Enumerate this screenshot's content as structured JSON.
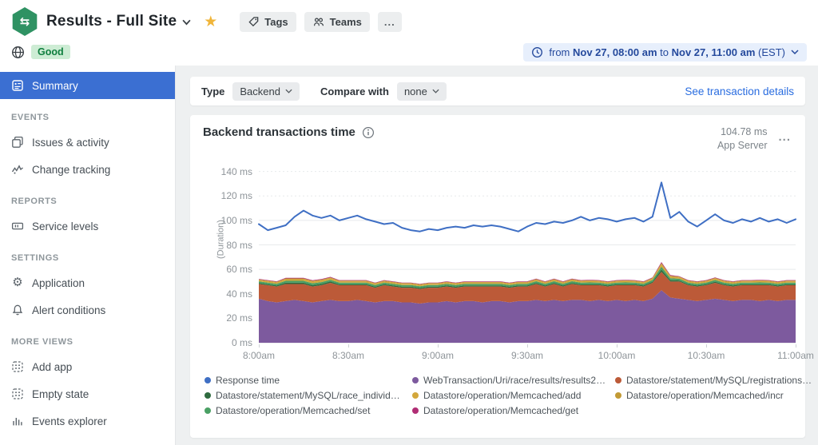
{
  "header": {
    "title": "Results - Full Site",
    "status": "Good",
    "tags_label": "Tags",
    "teams_label": "Teams",
    "more_label": "...",
    "time_range": {
      "prefix": "from",
      "start": "Nov 27, 08:00 am",
      "middle": "to",
      "end": "Nov 27, 11:00 am",
      "suffix": "(EST)"
    }
  },
  "sidebar": {
    "sections": [
      {
        "header": "",
        "items": [
          {
            "label": "Summary"
          }
        ]
      },
      {
        "header": "EVENTS",
        "items": [
          {
            "label": "Issues & activity"
          },
          {
            "label": "Change tracking"
          }
        ]
      },
      {
        "header": "REPORTS",
        "items": [
          {
            "label": "Service levels"
          }
        ]
      },
      {
        "header": "SETTINGS",
        "items": [
          {
            "label": "Application"
          },
          {
            "label": "Alert conditions"
          }
        ]
      },
      {
        "header": "MORE VIEWS",
        "items": [
          {
            "label": "Add app"
          },
          {
            "label": "Empty state"
          },
          {
            "label": "Events explorer"
          }
        ]
      }
    ]
  },
  "toolbar": {
    "type_label": "Type",
    "type_value": "Backend",
    "compare_label": "Compare with",
    "compare_value": "none",
    "details_link": "See transaction details"
  },
  "chart": {
    "title": "Backend transactions time",
    "metric_value": "104.78 ms",
    "metric_label": "App Server",
    "menu": "..."
  },
  "chart_data": {
    "type": "area",
    "title": "Backend transactions time",
    "ylabel": "(Duration)",
    "ylim": [
      0,
      145
    ],
    "yticks": [
      0,
      20,
      40,
      60,
      80,
      100,
      120,
      140
    ],
    "ytick_suffix": " ms",
    "xticks": [
      "8:00am",
      "8:30am",
      "9:00am",
      "9:30am",
      "10:00am",
      "10:30am",
      "11:00am"
    ],
    "x_start": "8:00am",
    "x_end": "11:00am",
    "x_interval_minutes": 3,
    "line_series": {
      "name": "Response time",
      "color": "#3f6fc4",
      "values": [
        97,
        92,
        94,
        96,
        103,
        108,
        104,
        102,
        104,
        100,
        102,
        104,
        101,
        99,
        97,
        98,
        94,
        92,
        91,
        93,
        92,
        94,
        95,
        94,
        96,
        95,
        96,
        95,
        93,
        91,
        95,
        98,
        97,
        99,
        98,
        100,
        103,
        100,
        102,
        101,
        99,
        101,
        102,
        99,
        103,
        131,
        102,
        107,
        99,
        95,
        100,
        105,
        100,
        98,
        101,
        99,
        102,
        99,
        101,
        98,
        101
      ]
    },
    "stack_series": [
      {
        "name": "WebTransaction/Uri/race/results/results2…",
        "color": "#7d5a9e",
        "values": [
          36,
          34,
          33,
          34,
          35,
          34,
          33,
          34,
          35,
          34,
          34,
          35,
          34,
          33,
          34,
          34,
          33,
          33,
          32,
          33,
          33,
          34,
          33,
          34,
          34,
          33,
          34,
          34,
          33,
          34,
          34,
          35,
          34,
          35,
          34,
          35,
          35,
          34,
          35,
          34,
          35,
          34,
          35,
          34,
          36,
          43,
          37,
          36,
          35,
          34,
          35,
          36,
          35,
          34,
          35,
          35,
          34,
          35,
          34,
          35,
          35
        ]
      },
      {
        "name": "Datastore/statement/MySQL/registrations…",
        "color": "#bc5a38",
        "values": [
          12,
          13,
          13,
          14,
          13,
          14,
          13,
          13,
          14,
          13,
          13,
          12,
          13,
          12,
          13,
          12,
          12,
          12,
          12,
          12,
          12,
          12,
          12,
          12,
          12,
          13,
          12,
          12,
          12,
          12,
          12,
          13,
          12,
          13,
          12,
          13,
          12,
          13,
          12,
          12,
          12,
          13,
          12,
          12,
          13,
          15,
          13,
          14,
          12,
          12,
          12,
          13,
          12,
          12,
          12,
          12,
          13,
          12,
          12,
          12,
          12
        ]
      },
      {
        "name": "Datastore/statement/MySQL/race_individ…",
        "color": "#2f6b3f",
        "values": [
          0.9,
          0.9,
          0.9,
          1.1,
          1.1,
          1.1,
          1.1,
          1.1,
          1.1,
          0.9,
          0.9,
          0.9,
          0.9,
          0.9,
          0.9,
          0.9,
          0.9,
          0.9,
          0.9,
          0.9,
          0.9,
          0.9,
          0.9,
          0.9,
          0.9,
          0.9,
          0.9,
          0.9,
          0.9,
          0.9,
          0.9,
          0.9,
          0.9,
          0.9,
          0.9,
          0.9,
          0.9,
          0.9,
          0.9,
          0.9,
          0.9,
          0.9,
          0.9,
          0.9,
          0.9,
          1.8,
          1.2,
          0.9,
          0.9,
          0.9,
          0.9,
          0.9,
          0.9,
          0.9,
          0.9,
          0.9,
          0.9,
          0.9,
          0.9,
          0.9,
          0.9
        ]
      },
      {
        "name": "Datastore/operation/Memcached/set",
        "color": "#4aa064",
        "values": [
          1.3,
          1.3,
          1.3,
          1.5,
          1.5,
          1.5,
          1.5,
          1.5,
          1.4,
          1.3,
          1.3,
          1.3,
          1.3,
          1.3,
          1.3,
          1.3,
          1.3,
          1.3,
          1.3,
          1.3,
          1.3,
          1.3,
          1.3,
          1.3,
          1.3,
          1.3,
          1.3,
          1.3,
          1.3,
          1.3,
          1.3,
          1.4,
          1.3,
          1.4,
          1.3,
          1.4,
          1.3,
          1.4,
          1.3,
          1.3,
          1.3,
          1.4,
          1.3,
          1.3,
          1.4,
          2.4,
          1.6,
          1.4,
          1.3,
          1.3,
          1.3,
          1.4,
          1.3,
          1.3,
          1.3,
          1.3,
          1.4,
          1.3,
          1.3,
          1.3,
          1.3
        ]
      },
      {
        "name": "Datastore/operation/Memcached/add",
        "color": "#d3a73c",
        "values": [
          1.0,
          1.0,
          1.0,
          1.3,
          1.3,
          1.3,
          1.3,
          1.3,
          1.2,
          1.0,
          1.0,
          1.0,
          1.0,
          1.0,
          1.0,
          1.0,
          1.0,
          1.0,
          1.0,
          1.0,
          1.0,
          1.0,
          1.0,
          1.0,
          1.0,
          1.0,
          1.0,
          1.0,
          1.0,
          1.0,
          1.0,
          1.1,
          1.0,
          1.1,
          1.0,
          1.1,
          1.0,
          1.1,
          1.0,
          1.0,
          1.0,
          1.1,
          1.0,
          1.0,
          1.1,
          2.0,
          1.3,
          1.1,
          1.0,
          1.0,
          1.0,
          1.1,
          1.0,
          1.0,
          1.0,
          1.0,
          1.1,
          1.0,
          1.0,
          1.0,
          1.0
        ]
      },
      {
        "name": "Datastore/operation/Memcached/incr",
        "color": "#c29a35",
        "values": [
          0.6,
          0.6,
          0.6,
          0.7,
          0.7,
          0.7,
          0.7,
          0.7,
          0.7,
          0.6,
          0.6,
          0.6,
          0.6,
          0.6,
          0.6,
          0.6,
          0.6,
          0.6,
          0.6,
          0.6,
          0.6,
          0.6,
          0.6,
          0.6,
          0.6,
          0.6,
          0.6,
          0.6,
          0.6,
          0.6,
          0.6,
          0.6,
          0.6,
          0.6,
          0.6,
          0.6,
          0.6,
          0.6,
          0.6,
          0.6,
          0.6,
          0.6,
          0.6,
          0.6,
          0.6,
          1.0,
          0.7,
          0.6,
          0.6,
          0.6,
          0.6,
          0.6,
          0.6,
          0.6,
          0.6,
          0.6,
          0.6,
          0.6,
          0.6,
          0.6,
          0.6
        ]
      },
      {
        "name": "Datastore/operation/Memcached/get",
        "color": "#b02d74",
        "values": [
          0.4,
          0.4,
          0.4,
          0.5,
          0.5,
          0.5,
          0.5,
          0.5,
          0.5,
          0.4,
          0.4,
          0.4,
          0.4,
          0.4,
          0.4,
          0.4,
          0.4,
          0.4,
          0.4,
          0.4,
          0.4,
          0.4,
          0.4,
          0.4,
          0.4,
          0.4,
          0.4,
          0.4,
          0.4,
          0.4,
          0.4,
          0.4,
          0.4,
          0.4,
          0.4,
          0.4,
          0.4,
          0.4,
          0.4,
          0.4,
          0.4,
          0.4,
          0.4,
          0.4,
          0.4,
          0.8,
          0.5,
          0.4,
          0.4,
          0.4,
          0.4,
          0.4,
          0.4,
          0.4,
          0.4,
          0.4,
          0.4,
          0.4,
          0.4,
          0.4,
          0.4
        ]
      }
    ],
    "legend": [
      {
        "label": "Response time",
        "color": "#3f6fc4"
      },
      {
        "label": "WebTransaction/Uri/race/results/results2…",
        "color": "#7d5a9e"
      },
      {
        "label": "Datastore/statement/MySQL/registrations…",
        "color": "#bc5a38"
      },
      {
        "label": "Datastore/statement/MySQL/race_individ…",
        "color": "#2f6b3f"
      },
      {
        "label": "Datastore/operation/Memcached/add",
        "color": "#d3a73c"
      },
      {
        "label": "Datastore/operation/Memcached/incr",
        "color": "#c29a35"
      },
      {
        "label": "Datastore/operation/Memcached/set",
        "color": "#4aa064"
      },
      {
        "label": "Datastore/operation/Memcached/get",
        "color": "#b02d74"
      }
    ],
    "legend_position": "bottom",
    "grid": true
  }
}
